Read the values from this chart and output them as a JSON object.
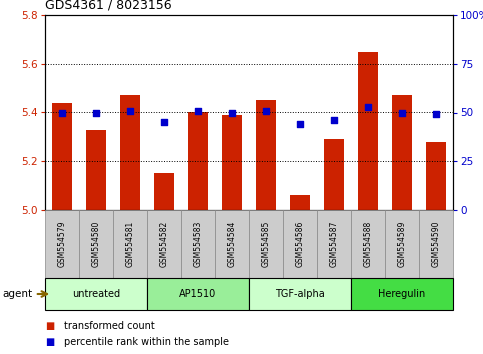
{
  "title": "GDS4361 / 8023156",
  "samples": [
    "GSM554579",
    "GSM554580",
    "GSM554581",
    "GSM554582",
    "GSM554583",
    "GSM554584",
    "GSM554585",
    "GSM554586",
    "GSM554587",
    "GSM554588",
    "GSM554589",
    "GSM554590"
  ],
  "bar_values": [
    5.44,
    5.33,
    5.47,
    5.15,
    5.4,
    5.39,
    5.45,
    5.06,
    5.29,
    5.65,
    5.47,
    5.28
  ],
  "dot_values": [
    50,
    50,
    51,
    45,
    51,
    50,
    51,
    44,
    46,
    53,
    50,
    49
  ],
  "ylim_left": [
    5.0,
    5.8
  ],
  "ylim_right": [
    0,
    100
  ],
  "yticks_left": [
    5.0,
    5.2,
    5.4,
    5.6,
    5.8
  ],
  "yticks_right": [
    0,
    25,
    50,
    75,
    100
  ],
  "ytick_labels_right": [
    "0",
    "25",
    "50",
    "75",
    "100%"
  ],
  "bar_color": "#cc2200",
  "dot_color": "#0000cc",
  "bar_width": 0.6,
  "groups": [
    {
      "label": "untreated",
      "start": 0,
      "end": 3,
      "color": "#ccffcc"
    },
    {
      "label": "AP1510",
      "start": 3,
      "end": 6,
      "color": "#99ee99"
    },
    {
      "label": "TGF-alpha",
      "start": 6,
      "end": 9,
      "color": "#ccffcc"
    },
    {
      "label": "Heregulin",
      "start": 9,
      "end": 12,
      "color": "#44dd44"
    }
  ],
  "legend_bar_label": "transformed count",
  "legend_dot_label": "percentile rank within the sample",
  "agent_label": "agent",
  "background_color": "#ffffff",
  "plot_bg_color": "#ffffff",
  "axis_color_left": "#cc2200",
  "axis_color_right": "#0000cc",
  "sample_box_color": "#cccccc",
  "sample_box_edge": "#888888"
}
